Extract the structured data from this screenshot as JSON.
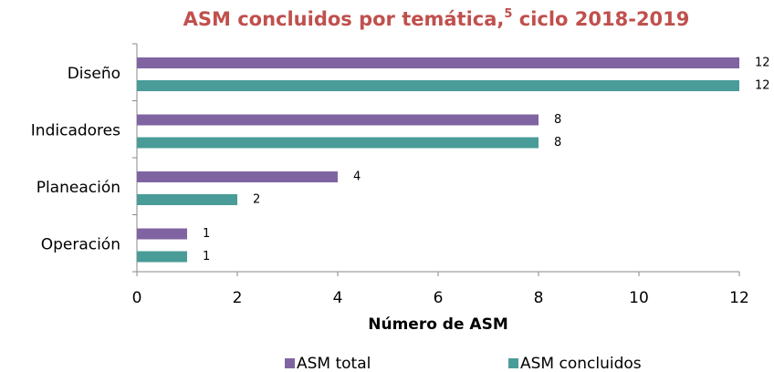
{
  "chart_data": {
    "type": "hbar",
    "title": [
      "ASM concluidos por temática,",
      "5",
      " ciclo 2018-2019"
    ],
    "xlabel": "Número de ASM",
    "categories": [
      "Diseño",
      "Indicadores",
      "Planeación",
      "Operación"
    ],
    "series": [
      {
        "name": "ASM total",
        "color": "#8064a2",
        "values": [
          12,
          8,
          4,
          1
        ]
      },
      {
        "name": "ASM concluidos",
        "color": "#4a9c98",
        "values": [
          12,
          8,
          2,
          1
        ]
      }
    ],
    "xlim": [
      0,
      12
    ],
    "xticks": [
      0,
      2,
      4,
      6,
      8,
      10,
      12
    ],
    "grid": false,
    "legend": "bottom"
  }
}
